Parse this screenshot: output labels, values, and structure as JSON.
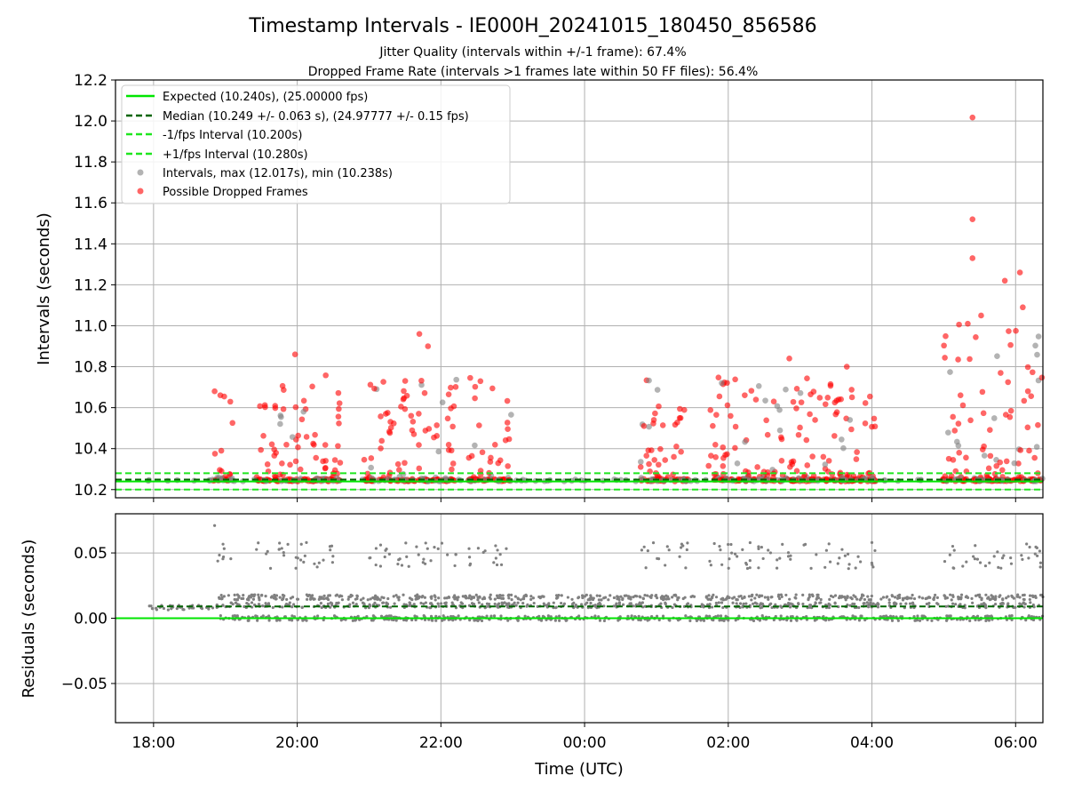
{
  "chart_data": [
    {
      "type": "scatter",
      "title": "Timestamp Intervals - IE000H_20241015_180450_856586",
      "subtitle_1": "Jitter Quality (intervals within +/-1 frame): 67.4%",
      "subtitle_2": "Dropped Frame Rate (intervals >1 frames late within 50 FF files): 56.4%",
      "ylabel": "Intervals (seconds)",
      "ylim": [
        10.16,
        12.2
      ],
      "yticks": [
        "10.2",
        "10.4",
        "10.6",
        "10.8",
        "11.0",
        "11.2",
        "11.4",
        "11.6",
        "11.8",
        "12.0",
        "12.2"
      ],
      "ytick_values": [
        10.2,
        10.4,
        10.6,
        10.8,
        11.0,
        11.2,
        11.4,
        11.6,
        11.8,
        12.0,
        12.2
      ],
      "xlim_hours": [
        -0.53,
        12.38
      ],
      "grid": true,
      "legend_position": "upper-left",
      "legend": [
        "Expected (10.240s), (25.00000 fps)",
        "Median (10.249 +/- 0.063 s), (24.97777 +/- 0.15 fps)",
        "-1/fps Interval (10.200s)",
        "+1/fps Interval (10.280s)",
        "Intervals, max (12.017s), min (10.238s)",
        "Possible Dropped Frames"
      ],
      "reference_lines": {
        "expected": 10.24,
        "median": 10.249,
        "minus_1fps": 10.2,
        "plus_1fps": 10.28
      },
      "observation_blocks_hours": [
        [
          0.83,
          1.1
        ],
        [
          1.43,
          2.6
        ],
        [
          2.93,
          4.22
        ],
        [
          4.38,
          4.98
        ],
        [
          6.78,
          7.45
        ],
        [
          7.72,
          10.05
        ],
        [
          10.98,
          12.38
        ]
      ],
      "dropped_frames_notable": [
        {
          "x": 11.4,
          "y": 12.017
        },
        {
          "x": 11.4,
          "y": 11.52
        },
        {
          "x": 11.4,
          "y": 11.33
        },
        {
          "x": 12.06,
          "y": 11.26
        },
        {
          "x": 11.85,
          "y": 11.22
        },
        {
          "x": 12.1,
          "y": 11.09
        },
        {
          "x": 11.52,
          "y": 11.05
        },
        {
          "x": 3.7,
          "y": 10.96
        },
        {
          "x": 3.82,
          "y": 10.9
        },
        {
          "x": 1.97,
          "y": 10.86
        },
        {
          "x": 8.85,
          "y": 10.84
        },
        {
          "x": 9.65,
          "y": 10.8
        },
        {
          "x": 0.85,
          "y": 10.68
        }
      ],
      "series": [
        {
          "name": "Intervals, max (12.017s), min (10.238s)",
          "color": "#808080"
        },
        {
          "name": "Possible Dropped Frames",
          "color": "#ff0000"
        }
      ]
    },
    {
      "type": "scatter",
      "xlabel": "Time (UTC)",
      "ylabel": "Residuals (seconds)",
      "ylim": [
        -0.08,
        0.08
      ],
      "yticks": [
        "−0.05",
        "0.00",
        "0.05"
      ],
      "ytick_values": [
        -0.05,
        0.0,
        0.05
      ],
      "xticks": [
        "18:00",
        "20:00",
        "22:00",
        "00:00",
        "02:00",
        "04:00",
        "06:00"
      ],
      "xtick_values_hours": [
        0,
        2,
        4,
        6,
        8,
        10,
        12
      ],
      "xlim_hours": [
        -0.53,
        12.38
      ],
      "reference_lines": {
        "expected": 0.0,
        "median": 0.009
      },
      "residual_levels": [
        0.0,
        0.01,
        0.016
      ],
      "outlier_band": [
        0.038,
        0.058
      ],
      "series": [
        {
          "name": "Residuals",
          "color": "#808080"
        }
      ]
    }
  ],
  "colors": {
    "expected": "#00e600",
    "median": "#006400",
    "fps_bounds": "#1ee61e",
    "interval_points": "#808080",
    "dropped_points": "#ff0000",
    "grid": "#b0b0b0"
  }
}
